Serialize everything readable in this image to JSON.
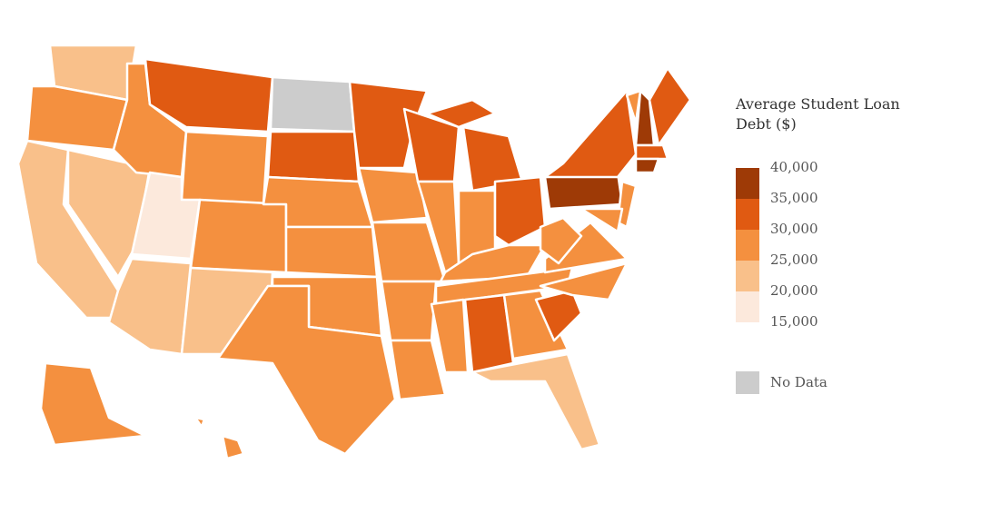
{
  "legend": {
    "title": "Average Student Loan Debt ($)",
    "ticks": [
      {
        "value": 40000,
        "label": "40,000"
      },
      {
        "value": 35000,
        "label": "35,000"
      },
      {
        "value": 30000,
        "label": "30,000"
      },
      {
        "value": 25000,
        "label": "25,000"
      },
      {
        "value": 20000,
        "label": "20,000"
      },
      {
        "value": 15000,
        "label": "15,000"
      }
    ],
    "colors": [
      "#9e3a06",
      "#e05a12",
      "#f4903f",
      "#f9c08a",
      "#fce9dc"
    ],
    "no_data": {
      "label": "No Data",
      "color": "#cccccc"
    }
  }
}
